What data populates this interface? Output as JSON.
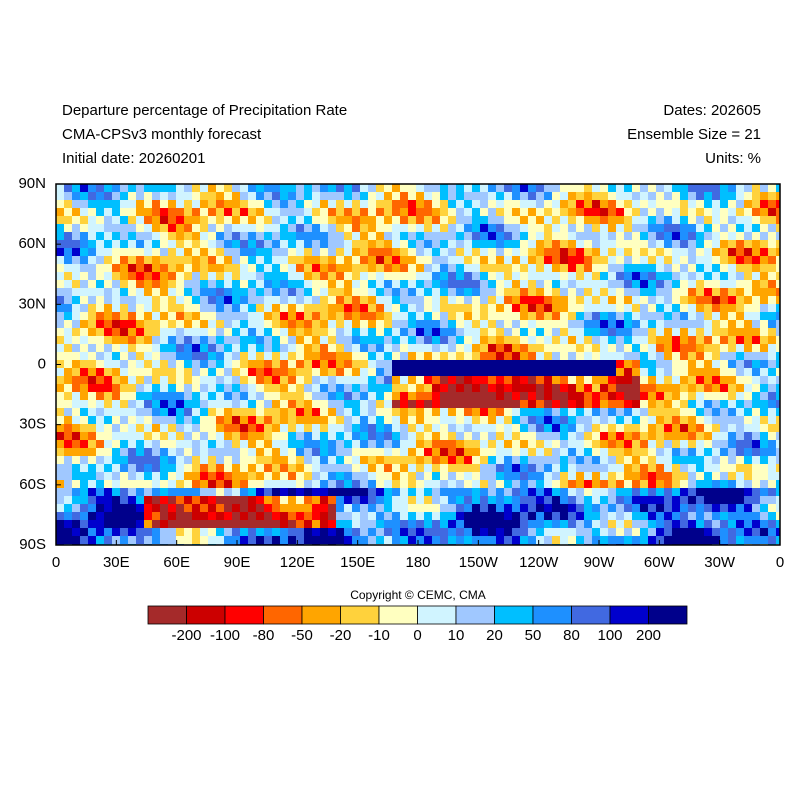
{
  "header": {
    "title": "Departure percentage of Precipitation Rate",
    "model": "CMA-CPSv3 monthly forecast",
    "initial_date": "Initial date: 20260201",
    "dates": "Dates: 202605",
    "ensemble": "Ensemble Size = 21",
    "units": "Units: %"
  },
  "map": {
    "lat_ticks": [
      "90N",
      "60N",
      "30N",
      "0",
      "30S",
      "60S",
      "90S"
    ],
    "lon_ticks": [
      "0",
      "30E",
      "60E",
      "90E",
      "120E",
      "150E",
      "180",
      "150W",
      "120W",
      "90W",
      "60W",
      "30W",
      "0"
    ]
  },
  "copyright": "Copyright © CEMC, CMA",
  "colorbar": {
    "colors": [
      "#a52a2a",
      "#cc0000",
      "#ff0000",
      "#ff6600",
      "#ffa500",
      "#ffd23c",
      "#ffffc0",
      "#d0f4ff",
      "#a0c8ff",
      "#00bfff",
      "#1e90ff",
      "#4169e1",
      "#0000cd",
      "#00008b"
    ],
    "labels": [
      "-200",
      "-100",
      "-80",
      "-50",
      "-20",
      "-10",
      "0",
      "10",
      "20",
      "50",
      "80",
      "100",
      "200"
    ]
  }
}
